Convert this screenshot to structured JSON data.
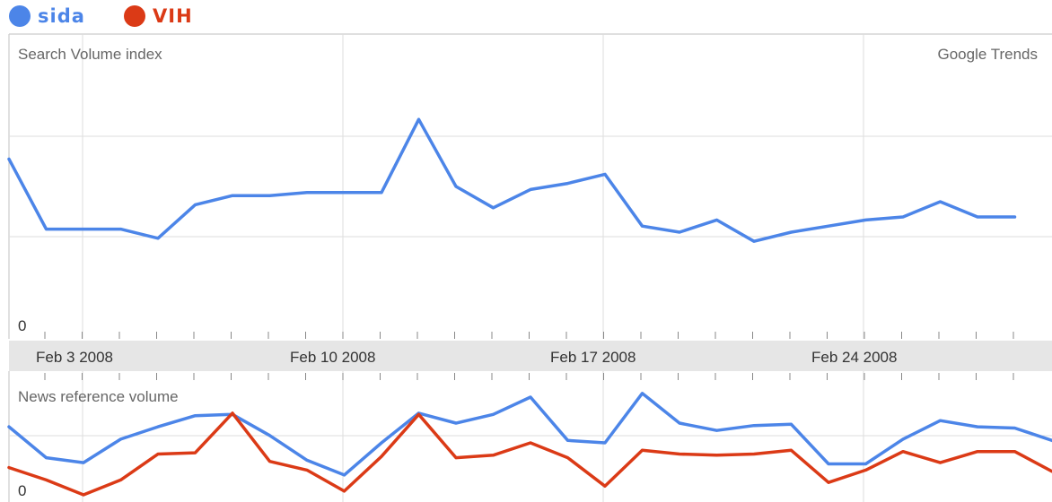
{
  "legend": [
    {
      "label": "sida",
      "color": "#4C85E8"
    },
    {
      "label": "VIH",
      "color": "#DB3A16"
    }
  ],
  "chart_data": [
    {
      "type": "line",
      "title": "Search Volume index",
      "source_label": "Google Trends",
      "y_zero_label": "0",
      "x_labels": [
        "Feb 3 2008",
        "Feb 10 2008",
        "Feb 17 2008",
        "Feb 24 2008"
      ],
      "x_range": [
        0,
        27
      ],
      "ylim": [
        0,
        100
      ],
      "grid": true,
      "series": [
        {
          "name": "sida",
          "color": "#4C85E8",
          "values": [
            59,
            36,
            36,
            36,
            33,
            44,
            47,
            47,
            48,
            48,
            48,
            72,
            50,
            43,
            49,
            51,
            54,
            37,
            35,
            39,
            32,
            35,
            37,
            39,
            40,
            45,
            40,
            40
          ]
        }
      ]
    },
    {
      "type": "line",
      "title": "News reference volume",
      "y_zero_label": "0",
      "x_range": [
        0,
        28
      ],
      "ylim": [
        0,
        100
      ],
      "grid": true,
      "series": [
        {
          "name": "sida",
          "color": "#4C85E8",
          "values": [
            55,
            30,
            26,
            45,
            55,
            64,
            65,
            48,
            28,
            16,
            42,
            66,
            58,
            65,
            79,
            44,
            42,
            82,
            58,
            52,
            56,
            57,
            25,
            25,
            45,
            60,
            55,
            54,
            44
          ]
        },
        {
          "name": "VIH",
          "color": "#DB3A16",
          "values": [
            22,
            12,
            0,
            12,
            33,
            34,
            66,
            27,
            20,
            3,
            31,
            65,
            30,
            32,
            42,
            30,
            7,
            36,
            33,
            32,
            33,
            36,
            10,
            20,
            35,
            26,
            35,
            35,
            19
          ]
        }
      ]
    }
  ]
}
